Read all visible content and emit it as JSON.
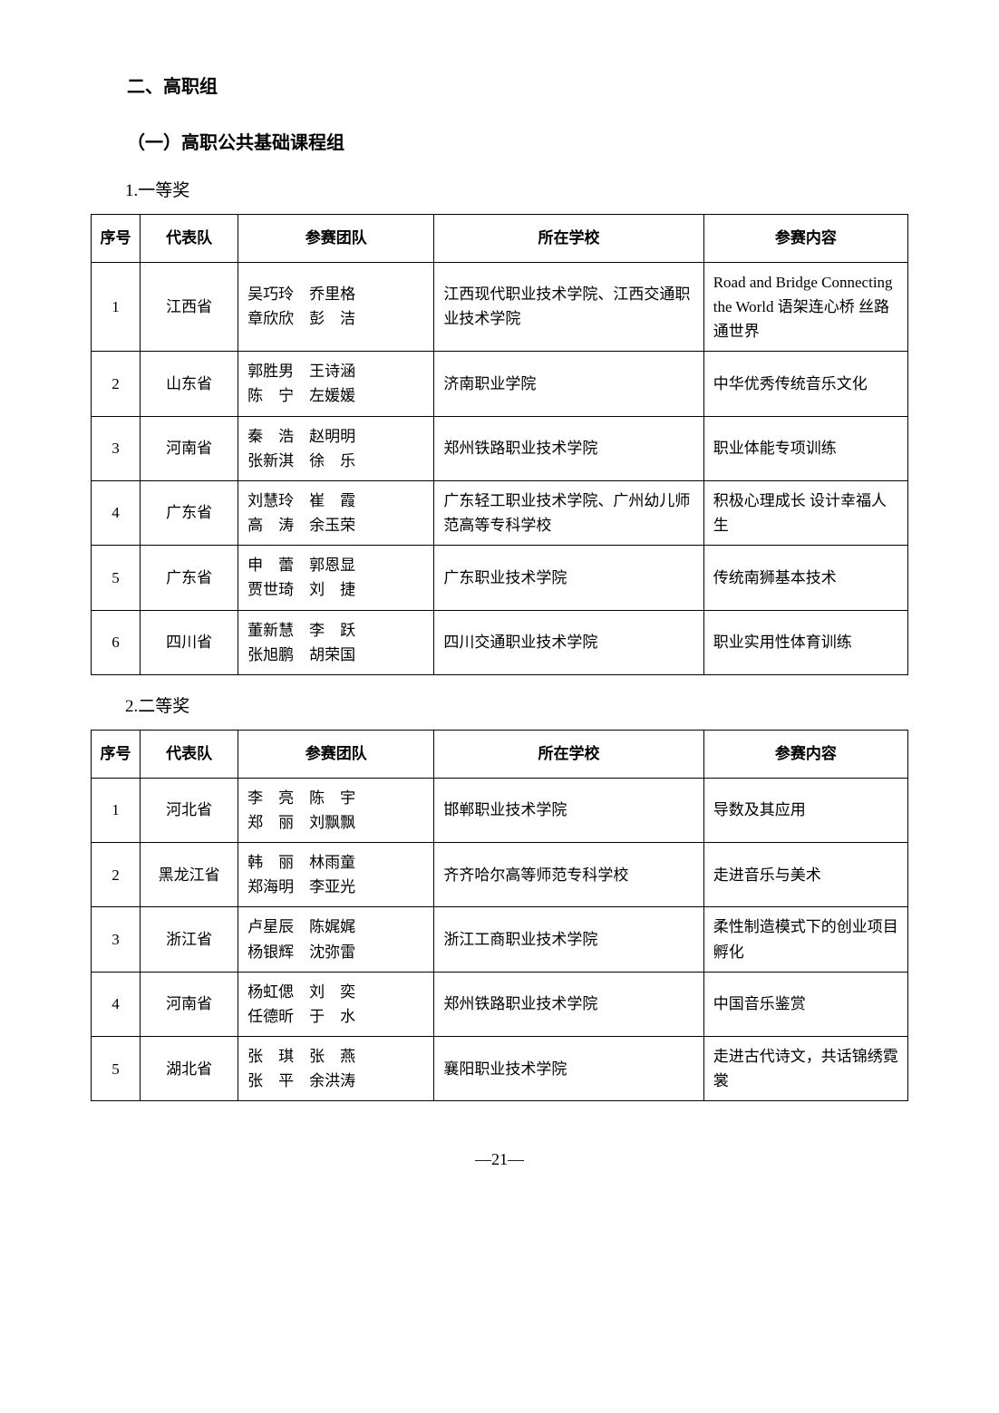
{
  "headings": {
    "section": "二、高职组",
    "subsection": "（一）高职公共基础课程组",
    "award1": "1.一等奖",
    "award2": "2.二等奖"
  },
  "tableHeaders": {
    "index": "序号",
    "province": "代表队",
    "team": "参赛团队",
    "school": "所在学校",
    "content": "参赛内容"
  },
  "table1": [
    {
      "index": "1",
      "province": "江西省",
      "team": "吴巧玲　乔里格\n章欣欣　彭　洁",
      "school": "江西现代职业技术学院、江西交通职业技术学院",
      "content": "Road and Bridge Connecting the World 语架连心桥  丝路通世界"
    },
    {
      "index": "2",
      "province": "山东省",
      "team": "郭胜男　王诗涵\n陈　宁　左媛媛",
      "school": "济南职业学院",
      "content": "中华优秀传统音乐文化"
    },
    {
      "index": "3",
      "province": "河南省",
      "team": "秦　浩　赵明明\n张新淇　徐　乐",
      "school": "郑州铁路职业技术学院",
      "content": "职业体能专项训练"
    },
    {
      "index": "4",
      "province": "广东省",
      "team": "刘慧玲　崔　霞\n高　涛　余玉荣",
      "school": "广东轻工职业技术学院、广州幼儿师范高等专科学校",
      "content": "积极心理成长  设计幸福人生"
    },
    {
      "index": "5",
      "province": "广东省",
      "team": "申　蕾　郭恩显\n贾世琦　刘　捷",
      "school": "广东职业技术学院",
      "content": "传统南狮基本技术"
    },
    {
      "index": "6",
      "province": "四川省",
      "team": "董新慧　李　跃\n张旭鹏　胡荣国",
      "school": "四川交通职业技术学院",
      "content": "职业实用性体育训练"
    }
  ],
  "table2": [
    {
      "index": "1",
      "province": "河北省",
      "team": "李　亮　陈　宇\n郑　丽　刘飘飘",
      "school": "邯郸职业技术学院",
      "content": "导数及其应用"
    },
    {
      "index": "2",
      "province": "黑龙江省",
      "team": "韩　丽　林雨童\n郑海明　李亚光",
      "school": "齐齐哈尔高等师范专科学校",
      "content": "走进音乐与美术"
    },
    {
      "index": "3",
      "province": "浙江省",
      "team": "卢星辰　陈娓娓\n杨银辉　沈弥雷",
      "school": "浙江工商职业技术学院",
      "content": "柔性制造模式下的创业项目孵化"
    },
    {
      "index": "4",
      "province": "河南省",
      "team": "杨虹偲　刘　奕\n任德昕　于　水",
      "school": "郑州铁路职业技术学院",
      "content": "中国音乐鉴赏"
    },
    {
      "index": "5",
      "province": "湖北省",
      "team": "张　琪　张　燕\n张　平　余洪涛",
      "school": "襄阳职业技术学院",
      "content": "走进古代诗文，共话锦绣霓裳"
    }
  ],
  "pageNumber": "—21—"
}
